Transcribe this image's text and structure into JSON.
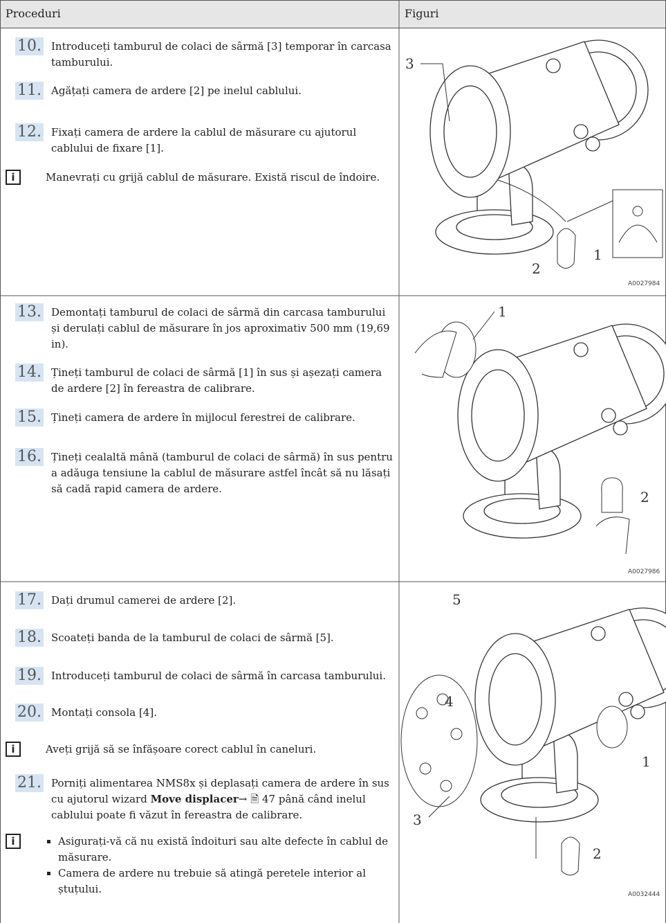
{
  "header": {
    "procedures": "Proceduri",
    "figures": "Figuri"
  },
  "rows": [
    {
      "items": [
        {
          "number": "10.",
          "text": "Introduceți tamburul de colaci de sârmă [3] temporar în carcasa tamburului."
        },
        {
          "number": "11.",
          "text": "Agățați camera de ardere [2] pe inelul cablului."
        },
        {
          "number": "12.",
          "text": "Fixați camera de ardere la cablul de măsurare cu ajutorul cablului de fixare [1]."
        },
        {
          "text": "Manevrați cu grijă cablul de măsurare. Există riscul de îndoire."
        }
      ],
      "figure": {
        "callouts": [
          "3",
          "2",
          "1"
        ],
        "code": "A0027984"
      }
    },
    {
      "items": [
        {
          "number": "13.",
          "text": "Demontați tamburul de colaci de sârmă din carcasa tamburului și derulați cablul de măsurare în jos aproximativ 500 mm (19,69 in)."
        },
        {
          "number": "14.",
          "text": "Țineți tamburul de colaci de sârmă [1] în sus și așezați camera de ardere [2] în fereastra de calibrare."
        },
        {
          "number": "15.",
          "text": "Țineți camera de ardere în mijlocul ferestrei de calibrare."
        },
        {
          "number": "16.",
          "text": "Țineți cealaltă mână (tamburul de colaci de sârmă) în sus pentru a adăuga tensiune la cablul de măsurare astfel încât să nu lăsați să cadă rapid camera de ardere."
        }
      ],
      "figure": {
        "callouts": [
          "1",
          "2"
        ],
        "code": "A0027986"
      }
    },
    {
      "items": [
        {
          "number": "17.",
          "text": "Dați drumul camerei de ardere [2]."
        },
        {
          "number": "18.",
          "text": "Scoateți banda de la tamburul de colaci de sârmă [5]."
        },
        {
          "number": "19.",
          "text": "Introduceți tamburul de colaci de sârmă în carcasa tamburului."
        },
        {
          "number": "20.",
          "text": "Montați consola [4]."
        },
        {
          "text": "Aveți grijă să se înfășoare corect cablul în caneluri."
        },
        {
          "number": "21.",
          "text": "Porniți alimentarea NMS8x și deplasați camera de ardere în sus cu ajutorul wizard",
          "bold": "Move displacer",
          "link": "→",
          "page": "47",
          "rest": "până când inelul cablului poate fi văzut în fereastra de calibrare."
        },
        {
          "bullets": [
            "Asigurați-vă că nu există îndoituri sau alte defecte în cablul de măsurare.",
            "Camera de ardere nu trebuie să atingă peretele interior al ștuțului."
          ]
        }
      ],
      "figure": {
        "callouts": [
          "5",
          "4",
          "1",
          "3",
          "2"
        ],
        "code": "A0032444"
      }
    }
  ]
}
